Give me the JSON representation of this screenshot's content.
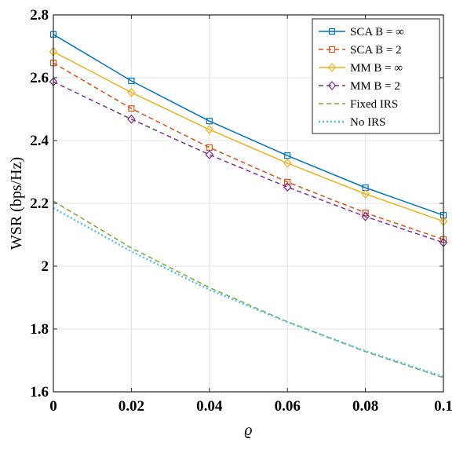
{
  "chart_data": {
    "type": "line",
    "xlabel": "ϱ",
    "ylabel": "WSR (bps/Hz)",
    "xlim": [
      0,
      0.1
    ],
    "ylim": [
      1.6,
      2.8
    ],
    "xticks": [
      0,
      0.02,
      0.04,
      0.06,
      0.08,
      0.1
    ],
    "xtick_labels": [
      "0",
      "0.02",
      "0.04",
      "0.06",
      "0.08",
      "0.1"
    ],
    "yticks": [
      1.6,
      1.8,
      2.0,
      2.2,
      2.4,
      2.6,
      2.8
    ],
    "ytick_labels": [
      "1.6",
      "1.8",
      "2",
      "2.2",
      "2.4",
      "2.6",
      "2.8"
    ],
    "grid": true,
    "legend_position": "top-right",
    "x": [
      0,
      0.02,
      0.04,
      0.06,
      0.08,
      0.1
    ],
    "series": [
      {
        "name": "SCA B = ∞",
        "values": [
          2.738,
          2.59,
          2.462,
          2.352,
          2.25,
          2.162
        ],
        "color": "#0072BD",
        "dash": "solid",
        "marker": "square"
      },
      {
        "name": "SCA B = 2",
        "values": [
          2.647,
          2.502,
          2.378,
          2.268,
          2.17,
          2.085
        ],
        "color": "#D95319",
        "dash": "dashed",
        "marker": "square"
      },
      {
        "name": "MM B = ∞",
        "values": [
          2.683,
          2.553,
          2.435,
          2.328,
          2.23,
          2.143
        ],
        "color": "#EDB120",
        "dash": "solid",
        "marker": "diamond"
      },
      {
        "name": "MM B = 2",
        "values": [
          2.587,
          2.468,
          2.355,
          2.252,
          2.158,
          2.075
        ],
        "color": "#7E2F8E",
        "dash": "dashed",
        "marker": "diamond"
      },
      {
        "name": "Fixed IRS",
        "values": [
          2.207,
          2.058,
          1.932,
          1.823,
          1.728,
          1.645
        ],
        "color": "#77AC30",
        "dash": "dashed",
        "marker": "none"
      },
      {
        "name": "No IRS",
        "values": [
          2.185,
          2.047,
          1.925,
          1.822,
          1.73,
          1.648
        ],
        "color": "#4DBEEE",
        "dash": "dotted",
        "marker": "none"
      }
    ]
  }
}
